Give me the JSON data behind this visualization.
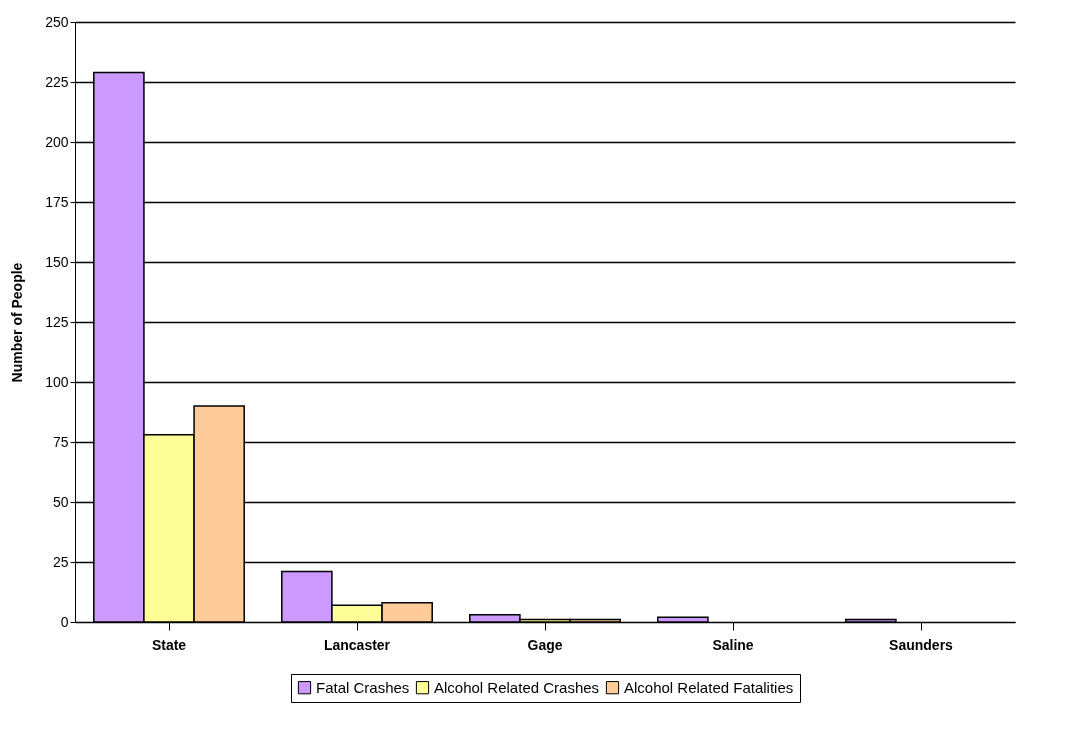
{
  "chart_data": {
    "type": "bar",
    "ylabel": "Number of People",
    "categories": [
      "State",
      "Lancaster",
      "Gage",
      "Saline",
      "Saunders"
    ],
    "series": [
      {
        "name": "Fatal Crashes",
        "color": "#cc99ff",
        "values": [
          229,
          21,
          3,
          2,
          1
        ]
      },
      {
        "name": "Alcohol Related Crashes",
        "color": "#ffff99",
        "values": [
          78,
          7,
          1,
          0,
          0
        ]
      },
      {
        "name": "Alcohol Related Fatalities",
        "color": "#ffcc99",
        "values": [
          90,
          8,
          1,
          0,
          0
        ]
      }
    ],
    "ylim": [
      0,
      250
    ],
    "yticks": [
      0,
      25,
      50,
      75,
      100,
      125,
      150,
      175,
      200,
      225,
      250
    ],
    "grid": "y",
    "legend": "bottom"
  }
}
